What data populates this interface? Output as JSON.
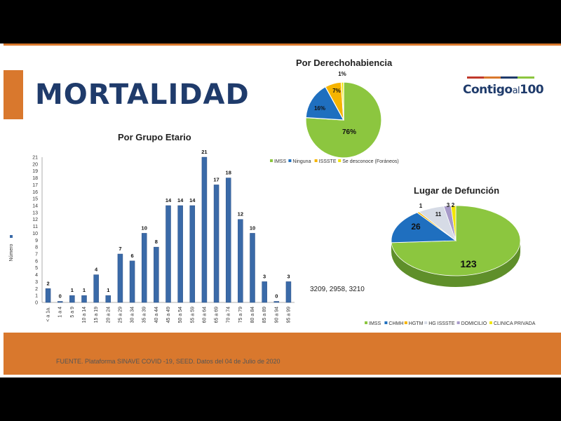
{
  "slide": {
    "title": "MORTALIDAD",
    "logo": {
      "part1": "Contigo",
      "part2": "al",
      "part3": "100"
    },
    "footer": "FUENTE. Plataforma SINAVE COVID -19, SEED. Datos del 04 de Julio de 2020",
    "side_text": "3209, 2958, 3210"
  },
  "colors": {
    "accent": "#d9782d",
    "title_blue": "#1f3b6b",
    "bar_blue": "#3a6aa8"
  },
  "chart_data": [
    {
      "type": "bar",
      "title": "Por Grupo Etario",
      "ylabel": "Número",
      "ylim": [
        0,
        21
      ],
      "categories": [
        "< a 1a.",
        "1 a 4",
        "5 a 9",
        "10 a 14",
        "15 a 19",
        "20 a 24",
        "25 a 29",
        "30 a 34",
        "35 a 39",
        "40 a 44",
        "45 a 49",
        "50 a 54",
        "55 a 59",
        "60 a 64",
        "65 a 69",
        "70 a 74",
        "75 a 79",
        "80 a 84",
        "85 a 89",
        "90 a 94",
        "95 a 99"
      ],
      "values": [
        2,
        0,
        1,
        1,
        4,
        1,
        7,
        6,
        10,
        8,
        14,
        14,
        14,
        21,
        17,
        18,
        12,
        10,
        3,
        0,
        3
      ],
      "yticks": [
        "0",
        "1",
        "2",
        "3",
        "4",
        "5",
        "6",
        "7",
        "8",
        "9",
        "10",
        "11",
        "12",
        "13",
        "14",
        "15",
        "16",
        "17",
        "18",
        "19",
        "20",
        "21"
      ]
    },
    {
      "type": "pie",
      "title": "Por Derechohabiencia",
      "labels": [
        "IMSS",
        "Ninguna",
        "ISSSTE",
        "Se desconoce (Foráneos)"
      ],
      "values": [
        76,
        16,
        7,
        1
      ],
      "data_labels": [
        "76%",
        "16%",
        "7%",
        "1%"
      ],
      "colors": [
        "#8cc63f",
        "#1f6fbf",
        "#f6b400",
        "#f2e600"
      ]
    },
    {
      "type": "pie",
      "title": "Lugar de Defunción",
      "labels": [
        "IMSS",
        "CHMH",
        "HGTM",
        "HG ISSSTE",
        "DOMICILIO",
        "CLINICA PRIVADA"
      ],
      "values": [
        123,
        26,
        1,
        11,
        3,
        2
      ],
      "data_labels": [
        "123",
        "26",
        "1",
        "11",
        "3",
        "2"
      ],
      "colors": [
        "#8cc63f",
        "#1f6fbf",
        "#f6b400",
        "#d6dbe6",
        "#a79ac9",
        "#f2e600"
      ]
    }
  ]
}
